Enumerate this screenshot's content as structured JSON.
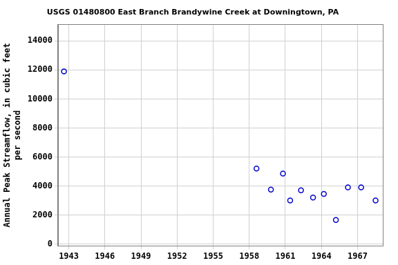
{
  "chart_data": {
    "type": "scatter",
    "title": "USGS 01480800 East Branch Brandywine Creek at Downingtown, PA",
    "y_label": [
      "Annual Peak Streamflow, in cubic feet",
      "per second"
    ],
    "x": [
      1942.6,
      1958.6,
      1959.8,
      1960.8,
      1961.4,
      1962.3,
      1963.3,
      1964.2,
      1965.2,
      1966.2,
      1967.3,
      1968.5
    ],
    "values": [
      11900,
      5200,
      3750,
      4850,
      3000,
      3700,
      3200,
      3450,
      1650,
      3900,
      3900,
      3000
    ],
    "color": "#0000cc",
    "marker": "circle_open",
    "xlim": [
      1942.1,
      1969.1
    ],
    "xticks": [
      1943,
      1946,
      1949,
      1952,
      1955,
      1958,
      1961,
      1964,
      1967
    ],
    "ylim": [
      -150,
      15150
    ],
    "yticks": [
      0,
      2000,
      4000,
      6000,
      8000,
      10000,
      12000,
      14000
    ],
    "grid": true
  }
}
